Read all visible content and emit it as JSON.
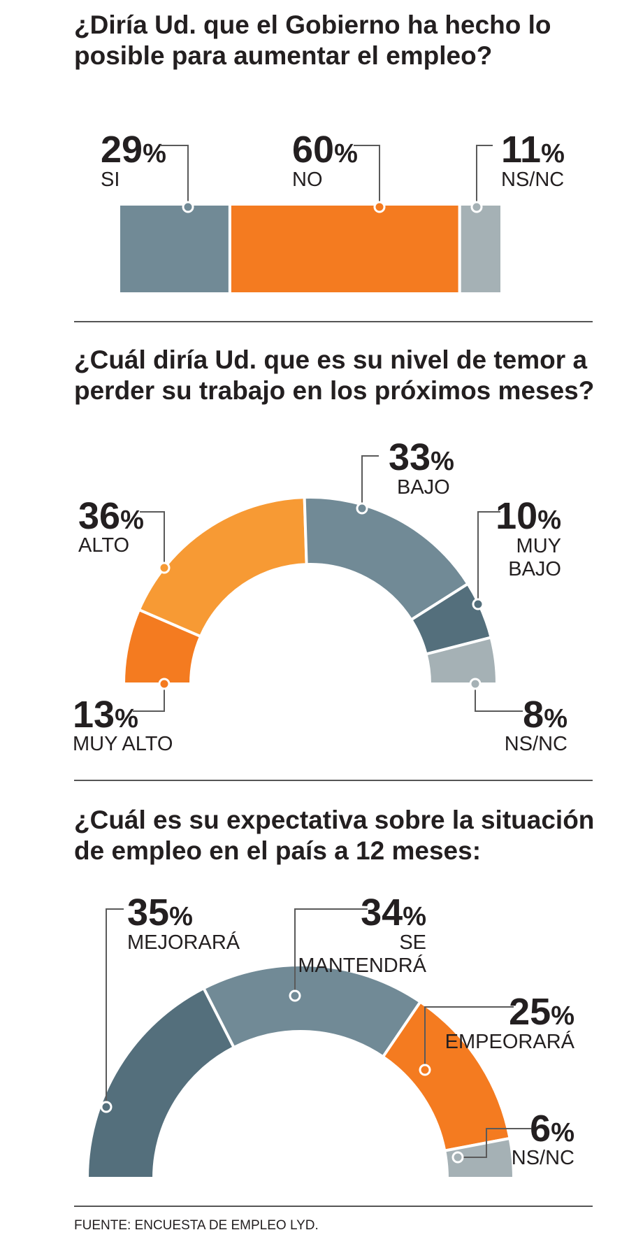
{
  "chart_data": [
    {
      "type": "bar",
      "title": "¿Diría Ud. que el Gobierno ha hecho lo posible para aumentar el empleo?",
      "categories": [
        "SI",
        "NO",
        "NS/NC"
      ],
      "values": [
        29,
        60,
        11
      ],
      "unit": "%",
      "colors": [
        "#718a96",
        "#f47b20",
        "#a5b1b5"
      ]
    },
    {
      "type": "pie",
      "title": "¿Cuál diría Ud. que es su nivel de temor a perder su trabajo en los próximos meses?",
      "categories": [
        "MUY ALTO",
        "ALTO",
        "BAJO",
        "MUY BAJO",
        "NS/NC"
      ],
      "values": [
        13,
        36,
        33,
        10,
        8
      ],
      "unit": "%",
      "colors": [
        "#f47b20",
        "#f79a34",
        "#718a96",
        "#546f7c",
        "#a5b1b5"
      ]
    },
    {
      "type": "pie",
      "title": "¿Cuál es su expectativa sobre la situación de empleo en el país a 12 meses:",
      "categories": [
        "MEJORARÁ",
        "SE MANTENDRÁ",
        "EMPEORARÁ",
        "NS/NC"
      ],
      "values": [
        35,
        34,
        25,
        6
      ],
      "unit": "%",
      "colors": [
        "#546f7c",
        "#718a96",
        "#f47b20",
        "#a5b1b5"
      ]
    }
  ],
  "text": {
    "q1_line1": "¿Diría Ud. que el Gobierno ha hecho lo",
    "q1_line2": "posible para aumentar el empleo?",
    "q2_line1": "¿Cuál diría Ud. que es su nivel de temor a",
    "q2_line2": "perder su trabajo en los próximos meses?",
    "q3_line1": "¿Cuál es su expectativa sobre la situación",
    "q3_line2": "de empleo en el país a 12 meses:",
    "source": "FUENTE: ENCUESTA DE EMPLEO LYD.",
    "labels": {
      "q1": [
        [
          "SI"
        ],
        [
          "NO"
        ],
        [
          "NS/NC"
        ]
      ],
      "q2": [
        [
          "MUY ALTO"
        ],
        [
          "ALTO"
        ],
        [
          "BAJO"
        ],
        [
          "MUY",
          "BAJO"
        ],
        [
          "NS/NC"
        ]
      ],
      "q3": [
        [
          "MEJORARÁ"
        ],
        [
          "SE",
          "MANTENDRÁ"
        ],
        [
          "EMPEORARÁ"
        ],
        [
          "NS/NC"
        ]
      ]
    }
  }
}
